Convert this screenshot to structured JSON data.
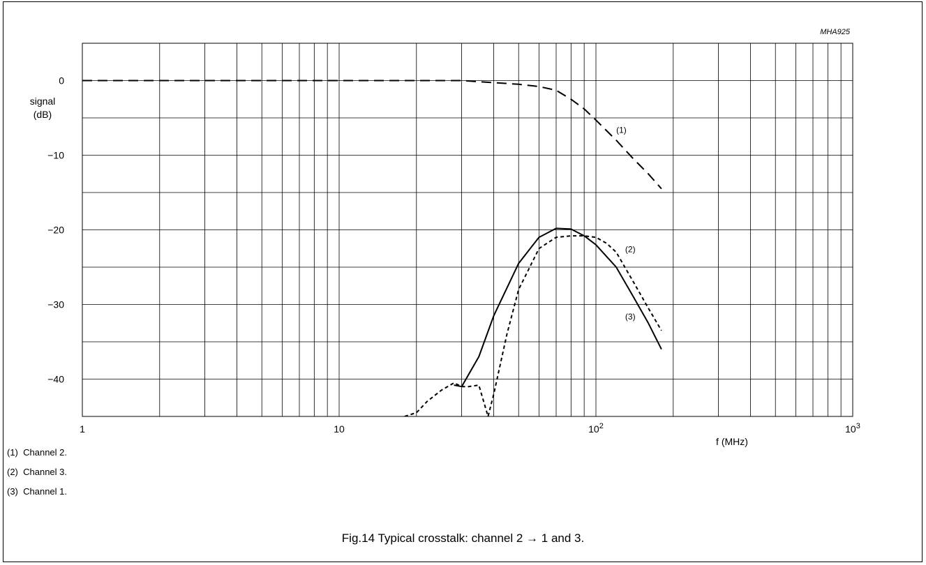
{
  "code": "MHA925",
  "ylabel": [
    "signal",
    "(dB)"
  ],
  "xlabel": "f (MHz)",
  "caption": "Fig.14  Typical crosstalk: channel 2 → 1 and 3.",
  "notes": [
    "(1)  Channel 2.",
    "(2)  Channel 3.",
    "(3)  Channel 1."
  ],
  "chart_data": {
    "type": "line",
    "x_scale": "log",
    "xlim": [
      1,
      1000
    ],
    "ylim": [
      -45,
      5
    ],
    "xticks": [
      {
        "value": 1,
        "label": "1"
      },
      {
        "value": 10,
        "label": "10"
      },
      {
        "value": 100,
        "label": "10",
        "sup": "2"
      },
      {
        "value": 1000,
        "label": "10",
        "sup": "3"
      }
    ],
    "yticks": [
      0,
      -10,
      -20,
      -30,
      -40
    ],
    "grid": true,
    "series": [
      {
        "name": "(1)",
        "style": "dashed",
        "label_at": {
          "x": 120,
          "y": -7
        },
        "x": [
          1,
          5,
          10,
          20,
          30,
          50,
          60,
          70,
          80,
          90,
          100,
          120,
          140,
          160,
          180
        ],
        "y": [
          0,
          0,
          0,
          0,
          0,
          -0.5,
          -0.8,
          -1.3,
          -2.5,
          -3.8,
          -5.3,
          -8,
          -10.5,
          -12.5,
          -14.5
        ]
      },
      {
        "name": "(2)",
        "style": "dotted",
        "label_at": {
          "x": 130,
          "y": -23
        },
        "x": [
          18,
          20,
          22,
          25,
          28,
          30,
          32,
          35,
          38,
          40,
          45,
          50,
          60,
          70,
          80,
          90,
          100,
          110,
          120,
          140,
          160,
          180
        ],
        "y": [
          -45,
          -44.5,
          -43,
          -41.5,
          -40.5,
          -41,
          -41,
          -40.8,
          -45,
          -42,
          -34,
          -28,
          -22.5,
          -21,
          -20.8,
          -20.8,
          -21,
          -21.8,
          -23,
          -27,
          -30.5,
          -33.5
        ]
      },
      {
        "name": "(3)",
        "style": "solid",
        "label_at": {
          "x": 130,
          "y": -32
        },
        "x": [
          28,
          30,
          35,
          40,
          50,
          60,
          70,
          80,
          90,
          100,
          120,
          140,
          160,
          180
        ],
        "y": [
          -40.8,
          -41,
          -37,
          -31.5,
          -24.5,
          -21,
          -19.8,
          -19.9,
          -20.8,
          -22,
          -25,
          -29,
          -32.5,
          -36
        ]
      }
    ]
  }
}
